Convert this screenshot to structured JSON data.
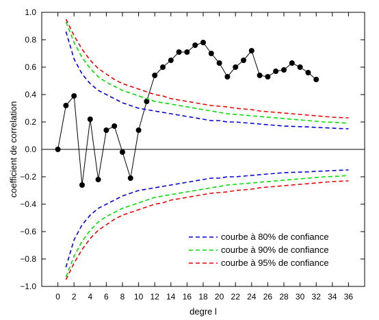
{
  "chart_data": {
    "type": "line",
    "title": "",
    "xlabel": "degre l",
    "ylabel": "coefficient de correlation",
    "xlim": [
      -2,
      38
    ],
    "ylim": [
      -1.0,
      1.0
    ],
    "x_ticks": [
      0,
      2,
      4,
      6,
      8,
      10,
      12,
      14,
      16,
      18,
      20,
      22,
      24,
      26,
      28,
      30,
      32,
      34,
      36
    ],
    "y_ticks": [
      -1.0,
      -0.8,
      -0.6,
      -0.4,
      -0.2,
      0.0,
      0.2,
      0.4,
      0.6,
      0.8,
      1.0
    ],
    "y_tick_labels": [
      "−1.0",
      "−0.8",
      "−0.6",
      "−0.4",
      "−0.2",
      "0.0",
      "0.2",
      "0.4",
      "0.6",
      "0.8",
      "1.0"
    ],
    "grid": false,
    "legend_position": "bottom-right",
    "series": [
      {
        "color": "#000000",
        "style": "solid-markers",
        "x": [
          0,
          1,
          2,
          3,
          4,
          5,
          6,
          7,
          8,
          9,
          10,
          11,
          12,
          13,
          14,
          15,
          16,
          17,
          18,
          19,
          20,
          21,
          22,
          23,
          24,
          25,
          26,
          27,
          28,
          29,
          30,
          31,
          32
        ],
        "values": [
          0.0,
          0.32,
          0.39,
          -0.26,
          0.22,
          -0.22,
          0.14,
          0.17,
          -0.02,
          -0.21,
          0.14,
          0.35,
          0.54,
          0.6,
          0.65,
          0.71,
          0.71,
          0.76,
          0.78,
          0.7,
          0.63,
          0.53,
          0.6,
          0.65,
          0.72,
          0.54,
          0.53,
          0.57,
          0.58,
          0.63,
          0.6,
          0.56,
          0.51
        ]
      },
      {
        "name": "courbe à 80% de confiance",
        "color": "#0000dd",
        "style": "dashed",
        "symmetric": true,
        "x": [
          1,
          2,
          3,
          4,
          5,
          6,
          7,
          8,
          9,
          10,
          11,
          12,
          13,
          14,
          15,
          16,
          17,
          18,
          19,
          20,
          21,
          22,
          23,
          24,
          25,
          26,
          27,
          28,
          29,
          30,
          31,
          32,
          33,
          34,
          35,
          36
        ],
        "values": [
          0.86,
          0.66,
          0.55,
          0.48,
          0.43,
          0.4,
          0.37,
          0.34,
          0.32,
          0.3,
          0.29,
          0.28,
          0.27,
          0.26,
          0.25,
          0.24,
          0.23,
          0.22,
          0.21,
          0.21,
          0.2,
          0.2,
          0.195,
          0.19,
          0.185,
          0.18,
          0.175,
          0.17,
          0.168,
          0.166,
          0.164,
          0.16,
          0.158,
          0.155,
          0.152,
          0.15
        ]
      },
      {
        "name": "courbe à 90% de confiance",
        "color": "#00dd00",
        "style": "dashed",
        "symmetric": true,
        "x": [
          1,
          2,
          3,
          4,
          5,
          6,
          7,
          8,
          9,
          10,
          11,
          12,
          13,
          14,
          15,
          16,
          17,
          18,
          19,
          20,
          21,
          22,
          23,
          24,
          25,
          26,
          27,
          28,
          29,
          30,
          31,
          32,
          33,
          34,
          35,
          36
        ],
        "values": [
          0.93,
          0.78,
          0.67,
          0.59,
          0.53,
          0.49,
          0.46,
          0.43,
          0.41,
          0.39,
          0.37,
          0.35,
          0.34,
          0.33,
          0.32,
          0.31,
          0.3,
          0.29,
          0.28,
          0.27,
          0.26,
          0.255,
          0.25,
          0.245,
          0.24,
          0.235,
          0.23,
          0.225,
          0.22,
          0.215,
          0.21,
          0.205,
          0.2,
          0.198,
          0.195,
          0.19
        ]
      },
      {
        "name": "courbe à 95% de confiance",
        "color": "#ee0000",
        "style": "dashed",
        "symmetric": true,
        "x": [
          1,
          2,
          3,
          4,
          5,
          6,
          7,
          8,
          9,
          10,
          11,
          12,
          13,
          14,
          15,
          16,
          17,
          18,
          19,
          20,
          21,
          22,
          23,
          24,
          25,
          26,
          27,
          28,
          29,
          30,
          31,
          32,
          33,
          34,
          35,
          36
        ],
        "values": [
          0.95,
          0.83,
          0.73,
          0.65,
          0.59,
          0.55,
          0.51,
          0.48,
          0.46,
          0.44,
          0.42,
          0.4,
          0.39,
          0.37,
          0.36,
          0.35,
          0.34,
          0.33,
          0.32,
          0.315,
          0.31,
          0.3,
          0.295,
          0.29,
          0.28,
          0.275,
          0.27,
          0.265,
          0.26,
          0.255,
          0.25,
          0.245,
          0.24,
          0.235,
          0.232,
          0.23
        ]
      }
    ]
  }
}
